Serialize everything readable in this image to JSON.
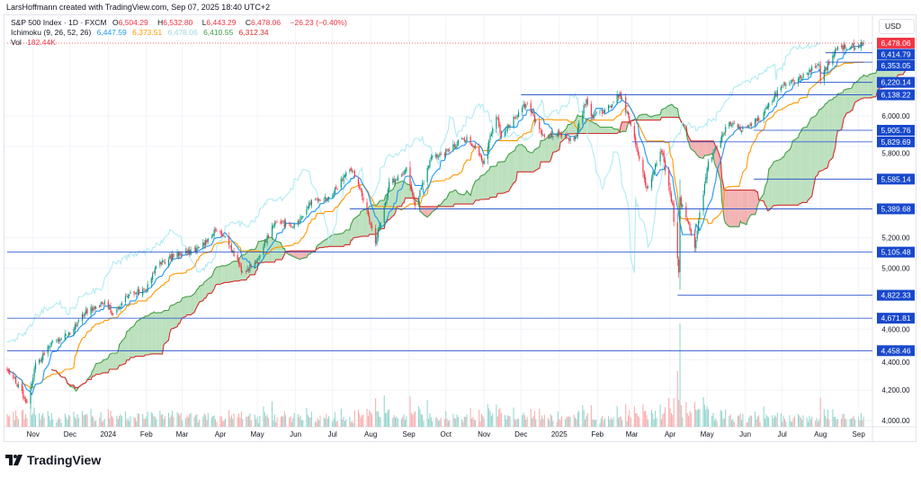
{
  "credit": "LarsHoffmann created with TradingView.com, Sep 07, 2025 18:40 UTC+2",
  "legend": {
    "symbol": "S&P 500 Index · 1D · FXCM",
    "o_label": "O",
    "o": "6,504.29",
    "h_label": "H",
    "h": "6,532.80",
    "l_label": "L",
    "l": "6,443.29",
    "c_label": "C",
    "c": "6,478.06",
    "change": "−26.23 (−0.40%)",
    "ichimoku_label": "Ichimoku (9, 26, 52, 26)",
    "ichimoku_values": [
      "6,447.59",
      "6,373.51",
      "6,478.06",
      "6,410.55",
      "6,312.34"
    ],
    "vol_label": "Vol",
    "vol_value": "182.44K"
  },
  "currency": "USD",
  "logo_text": "TradingView",
  "colors": {
    "up": "#089981",
    "down": "#f23645",
    "tenkan": "#2196f3",
    "kijun": "#ff9800",
    "lagging": "#b2ebf2",
    "span_a": "#43a047",
    "span_b": "#d32f2f",
    "cloud_up": "#a5d6a7",
    "cloud_down": "#ef9a9a",
    "level": "#1848cc"
  },
  "chart_data": {
    "type": "candlestick",
    "title": "S&P 500 Index · 1D · FXCM",
    "ylim": [
      3950,
      6530
    ],
    "y_ticks": [
      "6,000.00",
      "5,800.00",
      "5,200.00",
      "5,000.00",
      "4,600.00",
      "4,400.00",
      "4,200.00",
      "4,000.00"
    ],
    "y_tick_values": [
      6000,
      5800,
      5200,
      5000,
      4600,
      4400,
      4200,
      4000
    ],
    "x_ticks": [
      {
        "label": "Nov",
        "date": "2023-11-01"
      },
      {
        "label": "Dec",
        "date": "2023-12-01"
      },
      {
        "label": "2024",
        "date": "2024-01-01"
      },
      {
        "label": "Feb",
        "date": "2024-02-01"
      },
      {
        "label": "Mar",
        "date": "2024-03-01"
      },
      {
        "label": "Apr",
        "date": "2024-04-01"
      },
      {
        "label": "May",
        "date": "2024-05-01"
      },
      {
        "label": "Jun",
        "date": "2024-06-01"
      },
      {
        "label": "Jul",
        "date": "2024-07-01"
      },
      {
        "label": "Aug",
        "date": "2024-08-01"
      },
      {
        "label": "Sep",
        "date": "2024-09-01"
      },
      {
        "label": "Oct",
        "date": "2024-10-01"
      },
      {
        "label": "Nov",
        "date": "2024-11-01"
      },
      {
        "label": "Dec",
        "date": "2024-12-01"
      },
      {
        "label": "2025",
        "date": "2025-01-01"
      },
      {
        "label": "Feb",
        "date": "2025-02-01"
      },
      {
        "label": "Mar",
        "date": "2025-03-01"
      },
      {
        "label": "Apr",
        "date": "2025-04-01"
      },
      {
        "label": "May",
        "date": "2025-05-01"
      },
      {
        "label": "Jun",
        "date": "2025-06-01"
      },
      {
        "label": "Jul",
        "date": "2025-07-01"
      },
      {
        "label": "Aug",
        "date": "2025-08-01"
      },
      {
        "label": "Sep",
        "date": "2025-09-01"
      }
    ],
    "close_anchors": [
      [
        "2023-10-11",
        4350
      ],
      [
        "2023-10-20",
        4220
      ],
      [
        "2023-10-27",
        4120
      ],
      [
        "2023-11-03",
        4360
      ],
      [
        "2023-11-15",
        4500
      ],
      [
        "2023-11-30",
        4570
      ],
      [
        "2023-12-15",
        4720
      ],
      [
        "2023-12-29",
        4770
      ],
      [
        "2024-01-05",
        4700
      ],
      [
        "2024-01-19",
        4840
      ],
      [
        "2024-01-31",
        4850
      ],
      [
        "2024-02-09",
        5020
      ],
      [
        "2024-02-29",
        5100
      ],
      [
        "2024-03-15",
        5120
      ],
      [
        "2024-03-28",
        5250
      ],
      [
        "2024-04-05",
        5200
      ],
      [
        "2024-04-19",
        4970
      ],
      [
        "2024-04-30",
        5040
      ],
      [
        "2024-05-15",
        5300
      ],
      [
        "2024-05-31",
        5280
      ],
      [
        "2024-06-14",
        5430
      ],
      [
        "2024-06-28",
        5460
      ],
      [
        "2024-07-16",
        5660
      ],
      [
        "2024-07-26",
        5460
      ],
      [
        "2024-08-05",
        5180
      ],
      [
        "2024-08-16",
        5550
      ],
      [
        "2024-08-30",
        5650
      ],
      [
        "2024-09-06",
        5400
      ],
      [
        "2024-09-19",
        5720
      ],
      [
        "2024-09-30",
        5760
      ],
      [
        "2024-10-18",
        5860
      ],
      [
        "2024-10-31",
        5700
      ],
      [
        "2024-11-11",
        6000
      ],
      [
        "2024-11-15",
        5870
      ],
      [
        "2024-12-06",
        6090
      ],
      [
        "2024-12-18",
        5870
      ],
      [
        "2024-12-31",
        5880
      ],
      [
        "2025-01-13",
        5830
      ],
      [
        "2025-01-23",
        6110
      ],
      [
        "2025-01-27",
        6000
      ],
      [
        "2025-02-07",
        6030
      ],
      [
        "2025-02-19",
        6145
      ],
      [
        "2025-02-28",
        5950
      ],
      [
        "2025-03-13",
        5520
      ],
      [
        "2025-03-25",
        5770
      ],
      [
        "2025-04-03",
        5400
      ],
      [
        "2025-04-08",
        4980
      ],
      [
        "2025-04-09",
        5450
      ],
      [
        "2025-04-21",
        5150
      ],
      [
        "2025-05-02",
        5690
      ],
      [
        "2025-05-19",
        5960
      ],
      [
        "2025-05-30",
        5910
      ],
      [
        "2025-06-13",
        5980
      ],
      [
        "2025-06-30",
        6200
      ],
      [
        "2025-07-15",
        6250
      ],
      [
        "2025-07-31",
        6340
      ],
      [
        "2025-08-01",
        6240
      ],
      [
        "2025-08-15",
        6450
      ],
      [
        "2025-08-29",
        6460
      ],
      [
        "2025-09-05",
        6478.06
      ]
    ],
    "levels": [
      {
        "price": 6414.79,
        "label": "6,414.79",
        "from": "2025-08-05"
      },
      {
        "price": 6353.05,
        "label": "6,353.05",
        "from": "2025-08-05"
      },
      {
        "price": 6220.14,
        "label": "6,220.14",
        "from": "2025-07-15"
      },
      {
        "price": 6138.22,
        "label": "6,138.22",
        "from": "2024-12-01"
      },
      {
        "price": 5905.76,
        "label": "5,905.76",
        "from": "2025-06-08"
      },
      {
        "price": 5829.69,
        "label": "5,829.69",
        "from": "2025-03-01"
      },
      {
        "price": 5585.14,
        "label": "5,585.14",
        "from": "2025-06-08"
      },
      {
        "price": 5389.68,
        "label": "5,389.68",
        "from": "2024-07-15"
      },
      {
        "price": 5105.48,
        "label": "5,105.48",
        "from": "2023-10-11"
      },
      {
        "price": 4822.33,
        "label": "4,822.33",
        "from": "2025-04-07"
      },
      {
        "price": 4671.81,
        "label": "4,671.81",
        "from": "2023-10-11"
      },
      {
        "price": 4458.46,
        "label": "4,458.46",
        "from": "2023-10-11"
      }
    ],
    "last_price": {
      "price": 6478.06,
      "label": "6,478.06"
    }
  }
}
